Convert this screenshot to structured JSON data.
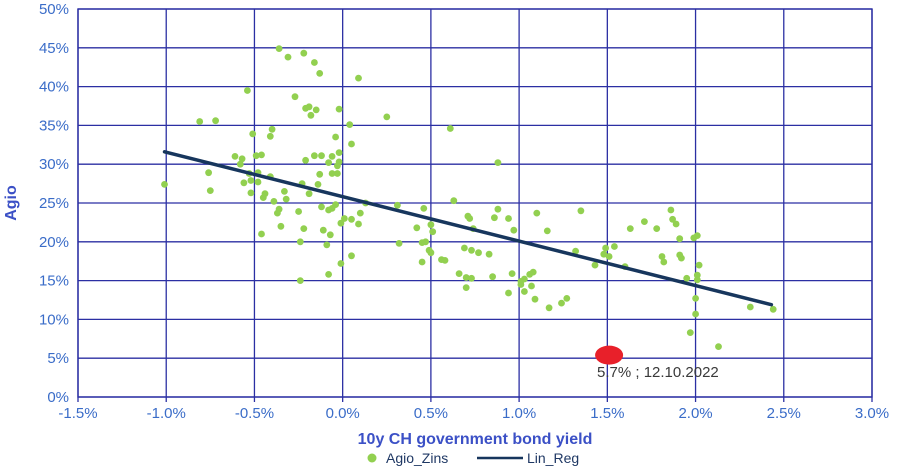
{
  "chart_data": {
    "type": "scatter",
    "title": "",
    "xlabel": "10y CH government bond yield",
    "ylabel": "Agio",
    "xlim": [
      -1.5,
      3.0
    ],
    "ylim": [
      0,
      50
    ],
    "grid": true,
    "legend_position": "bottom",
    "x_ticks": [
      "-1.5%",
      "-1.0%",
      "-0.5%",
      "0.0%",
      "0.5%",
      "1.0%",
      "1.5%",
      "2.0%",
      "2.5%",
      "3.0%"
    ],
    "x_tick_values": [
      -1.5,
      -1.0,
      -0.5,
      0.0,
      0.5,
      1.0,
      1.5,
      2.0,
      2.5,
      3.0
    ],
    "y_ticks": [
      "0%",
      "5%",
      "10%",
      "15%",
      "20%",
      "25%",
      "30%",
      "35%",
      "40%",
      "45%",
      "50%"
    ],
    "y_tick_values": [
      0,
      5,
      10,
      15,
      20,
      25,
      30,
      35,
      40,
      45,
      50
    ],
    "colors": {
      "scatter": "#92d050",
      "regression": "#17365d",
      "grid": "#2b2fa3",
      "tick_label": "#3a6cc8",
      "axis_title": "#3b50c6",
      "legend_text": "#1f3864",
      "marker_red": "#e8202a",
      "annotation_text": "#3a3a3a"
    },
    "series": [
      {
        "name": "Agio_Zins",
        "type": "scatter",
        "color": "#92d050",
        "points": [
          [
            -1.01,
            27.4
          ],
          [
            -0.81,
            35.5
          ],
          [
            -0.76,
            28.9
          ],
          [
            -0.75,
            26.6
          ],
          [
            -0.72,
            35.6
          ],
          [
            -0.61,
            31.0
          ],
          [
            -0.58,
            30.0
          ],
          [
            -0.57,
            30.7
          ],
          [
            -0.56,
            27.6
          ],
          [
            -0.54,
            39.5
          ],
          [
            -0.53,
            28.8
          ],
          [
            -0.52,
            27.9
          ],
          [
            -0.52,
            26.3
          ],
          [
            -0.51,
            33.9
          ],
          [
            -0.49,
            31.1
          ],
          [
            -0.48,
            28.9
          ],
          [
            -0.48,
            27.7
          ],
          [
            -0.46,
            31.2
          ],
          [
            -0.46,
            21.0
          ],
          [
            -0.45,
            25.7
          ],
          [
            -0.44,
            26.2
          ],
          [
            -0.41,
            33.6
          ],
          [
            -0.41,
            28.4
          ],
          [
            -0.4,
            34.5
          ],
          [
            -0.39,
            25.2
          ],
          [
            -0.37,
            23.7
          ],
          [
            -0.36,
            44.9
          ],
          [
            -0.36,
            24.2
          ],
          [
            -0.35,
            22.0
          ],
          [
            -0.33,
            26.5
          ],
          [
            -0.32,
            25.5
          ],
          [
            -0.31,
            43.8
          ],
          [
            -0.27,
            38.7
          ],
          [
            -0.25,
            23.9
          ],
          [
            -0.24,
            20.0
          ],
          [
            -0.24,
            15.0
          ],
          [
            -0.23,
            27.5
          ],
          [
            -0.22,
            44.3
          ],
          [
            -0.22,
            21.7
          ],
          [
            -0.21,
            37.2
          ],
          [
            -0.21,
            30.5
          ],
          [
            -0.19,
            37.4
          ],
          [
            -0.19,
            26.2
          ],
          [
            -0.18,
            36.3
          ],
          [
            -0.16,
            43.1
          ],
          [
            -0.16,
            31.1
          ],
          [
            -0.15,
            37.0
          ],
          [
            -0.14,
            27.4
          ],
          [
            -0.13,
            41.7
          ],
          [
            -0.13,
            28.7
          ],
          [
            -0.12,
            31.1
          ],
          [
            -0.12,
            24.5
          ],
          [
            -0.11,
            21.5
          ],
          [
            -0.09,
            19.6
          ],
          [
            -0.08,
            30.2
          ],
          [
            -0.08,
            24.1
          ],
          [
            -0.08,
            15.8
          ],
          [
            -0.07,
            20.9
          ],
          [
            -0.06,
            31.0
          ],
          [
            -0.06,
            28.8
          ],
          [
            -0.06,
            24.3
          ],
          [
            -0.04,
            33.5
          ],
          [
            -0.04,
            24.8
          ],
          [
            -0.03,
            29.8
          ],
          [
            -0.03,
            28.8
          ],
          [
            -0.02,
            37.1
          ],
          [
            -0.02,
            31.5
          ],
          [
            -0.02,
            30.3
          ],
          [
            -0.01,
            22.4
          ],
          [
            -0.01,
            17.2
          ],
          [
            0.01,
            23.0
          ],
          [
            0.04,
            35.1
          ],
          [
            0.05,
            32.6
          ],
          [
            0.05,
            22.9
          ],
          [
            0.05,
            18.2
          ],
          [
            0.09,
            41.1
          ],
          [
            0.09,
            22.3
          ],
          [
            0.1,
            23.7
          ],
          [
            0.13,
            25.0
          ],
          [
            0.25,
            36.1
          ],
          [
            0.31,
            24.7
          ],
          [
            0.32,
            19.8
          ],
          [
            0.42,
            21.8
          ],
          [
            0.45,
            19.9
          ],
          [
            0.45,
            17.4
          ],
          [
            0.46,
            24.3
          ],
          [
            0.47,
            20.0
          ],
          [
            0.49,
            18.9
          ],
          [
            0.5,
            22.2
          ],
          [
            0.5,
            18.6
          ],
          [
            0.51,
            21.3
          ],
          [
            0.56,
            17.7
          ],
          [
            0.58,
            17.6
          ],
          [
            0.61,
            34.6
          ],
          [
            0.63,
            25.3
          ],
          [
            0.66,
            15.9
          ],
          [
            0.69,
            19.2
          ],
          [
            0.7,
            15.4
          ],
          [
            0.7,
            14.1
          ],
          [
            0.71,
            23.3
          ],
          [
            0.72,
            23.0
          ],
          [
            0.73,
            18.9
          ],
          [
            0.73,
            15.3
          ],
          [
            0.74,
            21.7
          ],
          [
            0.77,
            18.6
          ],
          [
            0.83,
            18.4
          ],
          [
            0.85,
            15.5
          ],
          [
            0.86,
            23.1
          ],
          [
            0.88,
            30.2
          ],
          [
            0.88,
            24.2
          ],
          [
            0.94,
            23.0
          ],
          [
            0.94,
            13.4
          ],
          [
            0.96,
            15.9
          ],
          [
            0.97,
            21.5
          ],
          [
            1.01,
            14.9
          ],
          [
            1.01,
            14.5
          ],
          [
            1.03,
            15.2
          ],
          [
            1.03,
            13.6
          ],
          [
            1.06,
            15.8
          ],
          [
            1.07,
            14.3
          ],
          [
            1.08,
            16.1
          ],
          [
            1.09,
            12.6
          ],
          [
            1.1,
            23.7
          ],
          [
            1.16,
            21.4
          ],
          [
            1.17,
            11.5
          ],
          [
            1.24,
            12.1
          ],
          [
            1.27,
            12.7
          ],
          [
            1.32,
            18.8
          ],
          [
            1.35,
            24.0
          ],
          [
            1.43,
            17.0
          ],
          [
            1.48,
            18.4
          ],
          [
            1.49,
            19.2
          ],
          [
            1.51,
            18.1
          ],
          [
            1.54,
            19.4
          ],
          [
            1.6,
            16.8
          ],
          [
            1.63,
            21.7
          ],
          [
            1.71,
            22.6
          ],
          [
            1.78,
            21.7
          ],
          [
            1.81,
            18.1
          ],
          [
            1.82,
            17.4
          ],
          [
            1.86,
            24.1
          ],
          [
            1.87,
            22.9
          ],
          [
            1.89,
            22.3
          ],
          [
            1.91,
            20.4
          ],
          [
            1.91,
            18.3
          ],
          [
            1.92,
            17.9
          ],
          [
            1.95,
            15.3
          ],
          [
            1.97,
            8.3
          ],
          [
            1.99,
            20.5
          ],
          [
            2.0,
            12.7
          ],
          [
            2.0,
            10.7
          ],
          [
            2.01,
            20.8
          ],
          [
            2.01,
            15.7
          ],
          [
            2.01,
            15.1
          ],
          [
            2.02,
            17.0
          ],
          [
            2.13,
            6.5
          ],
          [
            2.31,
            11.6
          ],
          [
            2.44,
            11.3
          ]
        ]
      },
      {
        "name": "Lin_Reg",
        "type": "line",
        "color": "#17365d",
        "points": [
          [
            -1.01,
            31.6
          ],
          [
            2.43,
            11.9
          ]
        ]
      }
    ],
    "annotation": {
      "label": "5.7% ; 12.10.2022",
      "x": 1.51,
      "y": 5.4,
      "marker_color": "#e8202a",
      "text_color": "#3a3a3a"
    }
  }
}
